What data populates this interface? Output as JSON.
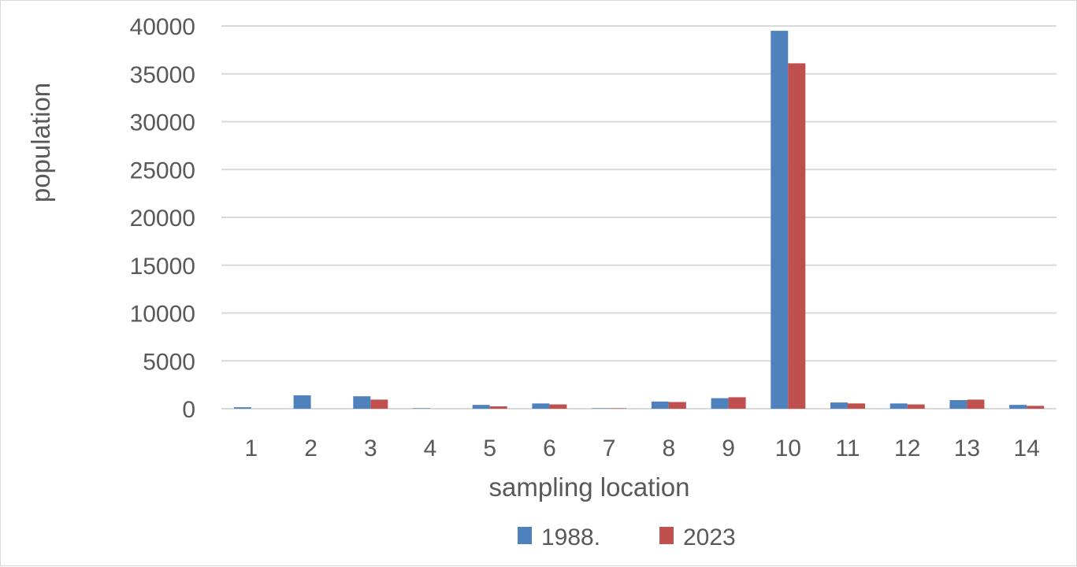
{
  "chart_data": {
    "type": "bar",
    "title": "",
    "xlabel": "sampling location",
    "ylabel": "population",
    "categories": [
      "1",
      "2",
      "3",
      "4",
      "5",
      "6",
      "7",
      "8",
      "9",
      "10",
      "11",
      "12",
      "13",
      "14"
    ],
    "series": [
      {
        "name": "1988.",
        "color": "#4f81bd",
        "values": [
          150,
          1400,
          1300,
          50,
          400,
          550,
          50,
          750,
          1100,
          39500,
          650,
          550,
          900,
          400
        ]
      },
      {
        "name": "2023",
        "color": "#c0504d",
        "values": [
          0,
          0,
          950,
          0,
          250,
          450,
          50,
          700,
          1200,
          36100,
          550,
          450,
          950,
          300
        ]
      }
    ],
    "ylim": [
      0,
      40000
    ],
    "yticks": [
      0,
      5000,
      10000,
      15000,
      20000,
      25000,
      30000,
      35000,
      40000
    ],
    "grid": true,
    "legend_position": "bottom"
  }
}
